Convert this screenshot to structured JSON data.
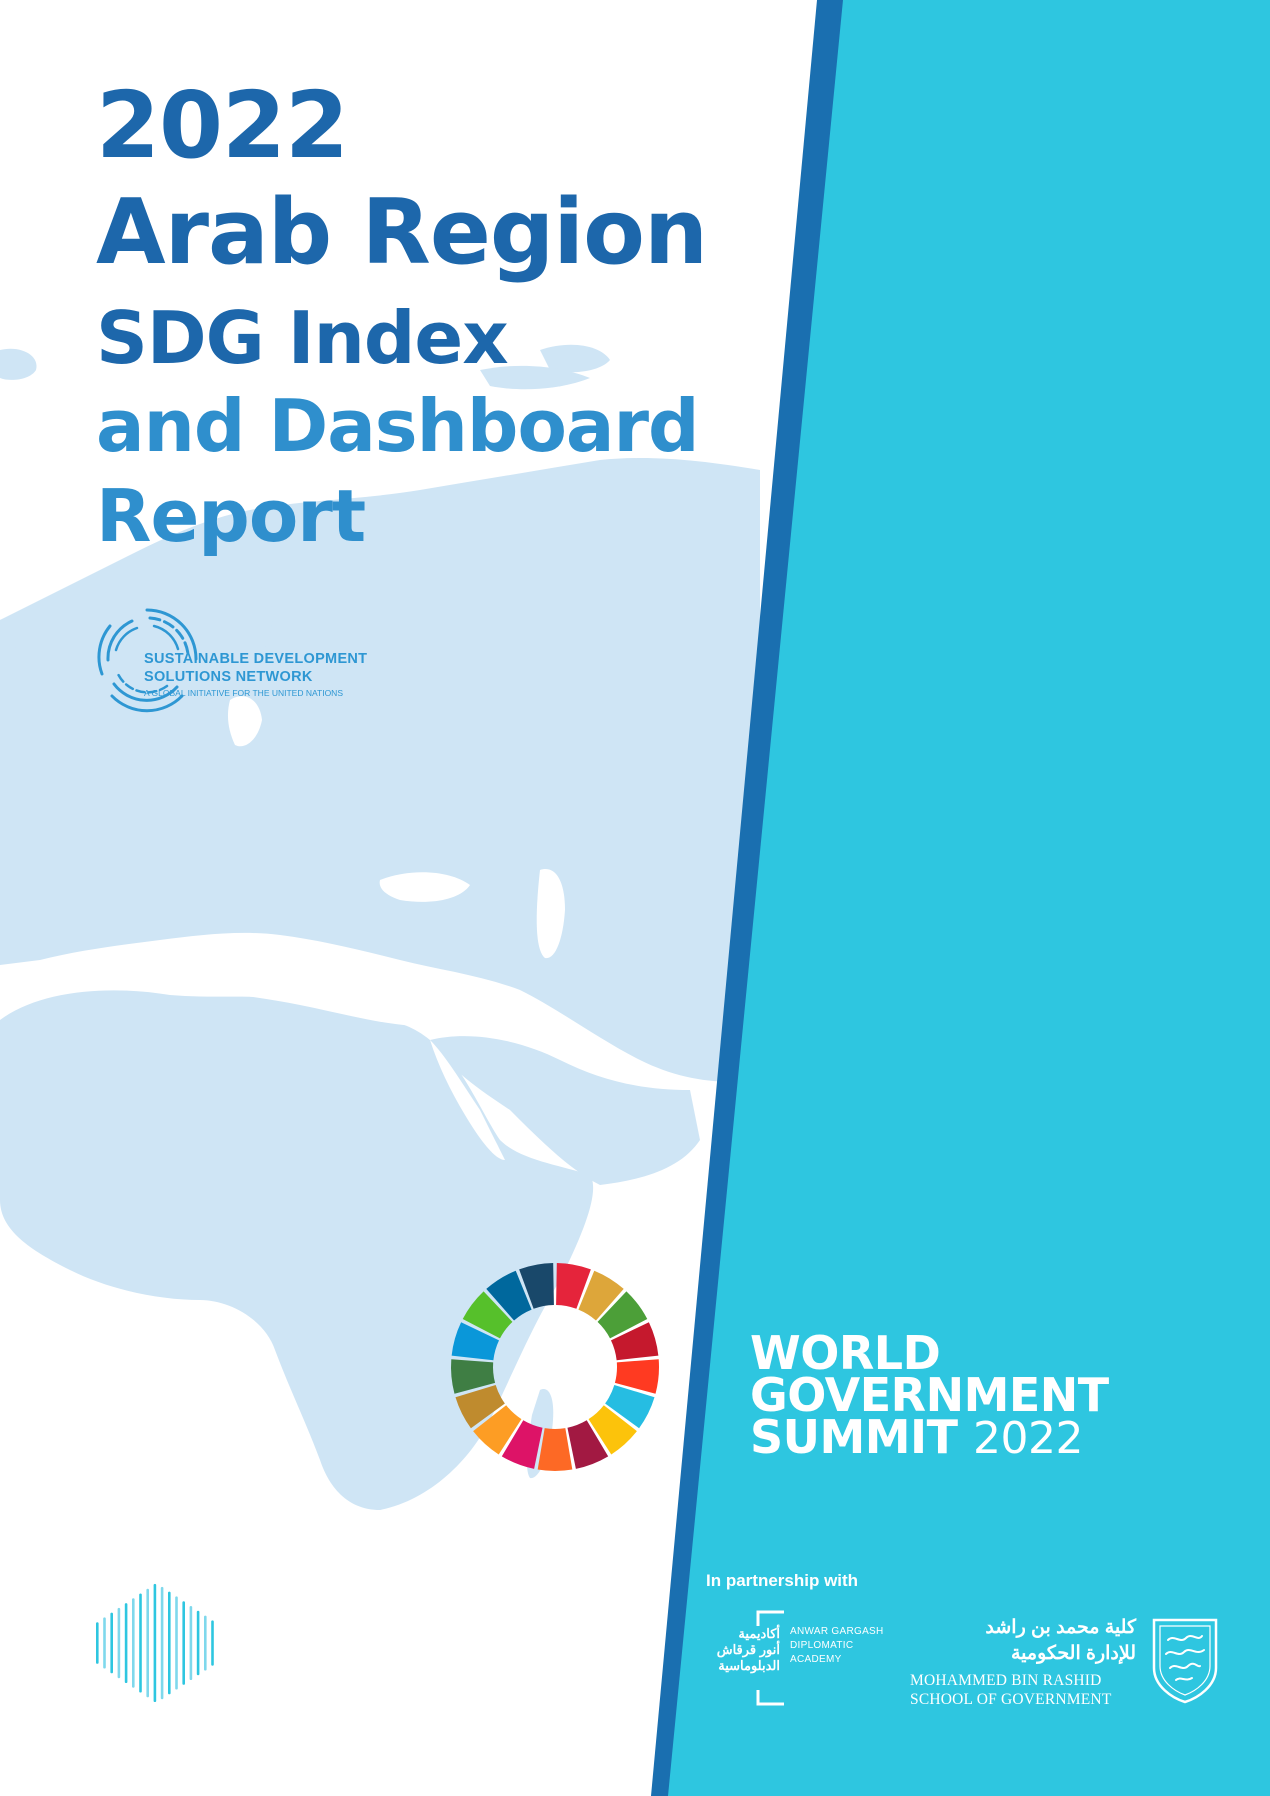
{
  "colors": {
    "title_dark": "#1d67ab",
    "title_light": "#2f8fcd",
    "panel_cyan": "#2ec6e0",
    "stripe_blue": "#1a6fb0",
    "map_blue": "#cfe5f5",
    "sdsn_blue": "#2e97d3"
  },
  "title": {
    "line1": "2022",
    "line2": "Arab Region",
    "line3": "SDG Index",
    "line4": "and Dashboard",
    "line5": "Report"
  },
  "sdsn_logo": {
    "icon": "concentric-rings-icon",
    "line1": "SUSTAINABLE DEVELOPMENT",
    "line2": "SOLUTIONS NETWORK",
    "line3": "A GLOBAL INITIATIVE FOR THE UNITED NATIONS"
  },
  "sdg_wheel": {
    "icon": "sdg-color-wheel-icon",
    "segment_colors": [
      "#e5243b",
      "#dda63a",
      "#4c9f38",
      "#c5192d",
      "#ff3a21",
      "#26bde2",
      "#fcc30b",
      "#a21942",
      "#fd6925",
      "#dd1367",
      "#fd9d24",
      "#bf8b2e",
      "#3f7e44",
      "#0a97d9",
      "#56c02b",
      "#00689d",
      "#19486a"
    ]
  },
  "summit": {
    "line1": "WORLD",
    "line2": "GOVERNMENT",
    "line3": "SUMMIT",
    "year": "2022"
  },
  "partnership": {
    "label": "In partnership with",
    "anwar": {
      "arabic": [
        "أكاديمية",
        "أنور قرقاش",
        "الدبلوماسية"
      ],
      "english": [
        "ANWAR GARGASH",
        "DIPLOMATIC",
        "ACADEMY"
      ]
    },
    "mbrsg": {
      "arabic": [
        "كلية محمد بن راشد",
        "للإدارة الحكومية"
      ],
      "english": [
        "MOHAMMED BIN RASHID",
        "SCHOOL OF GOVERNMENT"
      ],
      "icon": "crest-icon"
    }
  }
}
